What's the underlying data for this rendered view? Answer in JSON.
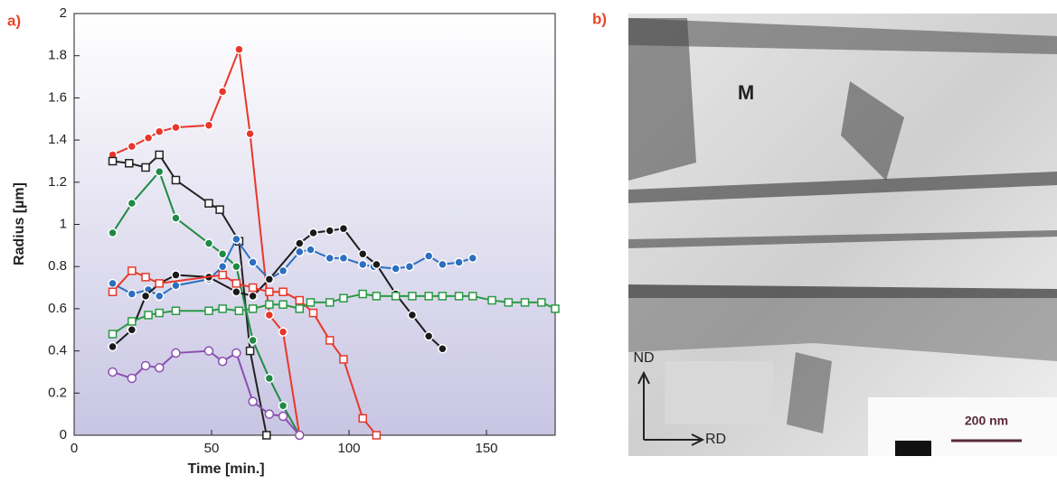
{
  "chart_data": {
    "type": "line",
    "panel_label": "a)",
    "x_label": "Time [min.]",
    "y_label": "Radius [µm]",
    "xlim": [
      0,
      175
    ],
    "ylim": [
      0,
      2
    ],
    "xticks": [
      0,
      50,
      100,
      150
    ],
    "yticks": [
      0,
      0.2,
      0.4,
      0.6,
      0.8,
      1,
      1.2,
      1.4,
      1.6,
      1.8,
      2
    ],
    "series": [
      {
        "color": "#e8372a",
        "marker": "circle",
        "filled": true,
        "x": [
          14,
          21,
          27,
          31,
          37,
          49,
          54,
          60,
          64,
          71,
          76,
          82
        ],
        "values": [
          1.33,
          1.37,
          1.41,
          1.44,
          1.46,
          1.47,
          1.63,
          1.83,
          1.43,
          0.57,
          0.49,
          0
        ]
      },
      {
        "color": "#222222",
        "marker": "square",
        "filled": false,
        "x": [
          14,
          20,
          26,
          31,
          37,
          49,
          53,
          60,
          64,
          70
        ],
        "values": [
          1.3,
          1.29,
          1.27,
          1.33,
          1.21,
          1.1,
          1.07,
          0.92,
          0.4,
          0
        ]
      },
      {
        "color": "#1f8a45",
        "marker": "circle",
        "filled": true,
        "x": [
          14,
          21,
          31,
          37,
          49,
          54,
          59,
          65,
          71,
          76,
          82
        ],
        "values": [
          0.96,
          1.1,
          1.25,
          1.03,
          0.91,
          0.86,
          0.8,
          0.45,
          0.27,
          0.14,
          0
        ]
      },
      {
        "color": "#2c6fc0",
        "marker": "circle",
        "filled": true,
        "x": [
          14,
          21,
          27,
          31,
          37,
          49,
          54,
          59,
          65,
          71,
          76,
          82,
          86,
          93,
          98,
          105,
          109,
          117,
          122,
          129,
          134,
          140,
          145
        ],
        "values": [
          0.72,
          0.67,
          0.69,
          0.66,
          0.71,
          0.74,
          0.8,
          0.93,
          0.82,
          0.74,
          0.78,
          0.87,
          0.88,
          0.84,
          0.84,
          0.81,
          0.8,
          0.79,
          0.8,
          0.85,
          0.81,
          0.82,
          0.84
        ]
      },
      {
        "color": "#1a1a1a",
        "marker": "circle",
        "filled": true,
        "x": [
          14,
          21,
          26,
          31,
          37,
          49,
          59,
          65,
          71,
          82,
          87,
          93,
          98,
          105,
          110,
          117,
          123,
          129,
          134
        ],
        "values": [
          0.42,
          0.5,
          0.66,
          0.72,
          0.76,
          0.75,
          0.68,
          0.66,
          0.74,
          0.91,
          0.96,
          0.97,
          0.98,
          0.86,
          0.81,
          0.67,
          0.57,
          0.47,
          0.41
        ]
      },
      {
        "color": "#e8372a",
        "marker": "square",
        "filled": false,
        "x": [
          14,
          21,
          26,
          31,
          54,
          59,
          65,
          71,
          76,
          82,
          87,
          93,
          98,
          105,
          110
        ],
        "values": [
          0.68,
          0.78,
          0.75,
          0.72,
          0.76,
          0.72,
          0.7,
          0.68,
          0.68,
          0.64,
          0.58,
          0.45,
          0.36,
          0.08,
          0
        ]
      },
      {
        "color": "#2a9a45",
        "marker": "square",
        "filled": false,
        "x": [
          14,
          21,
          27,
          31,
          37,
          49,
          54,
          60,
          65,
          71,
          76,
          82,
          86,
          93,
          98,
          105,
          110,
          117,
          123,
          129,
          134,
          140,
          145,
          152,
          158,
          164,
          170,
          175
        ],
        "values": [
          0.48,
          0.54,
          0.57,
          0.58,
          0.59,
          0.59,
          0.6,
          0.59,
          0.6,
          0.62,
          0.62,
          0.6,
          0.63,
          0.63,
          0.65,
          0.67,
          0.66,
          0.66,
          0.66,
          0.66,
          0.66,
          0.66,
          0.66,
          0.64,
          0.63,
          0.63,
          0.63,
          0.6
        ]
      },
      {
        "color": "#8a4fb0",
        "marker": "circle",
        "filled": false,
        "x": [
          14,
          21,
          26,
          31,
          37,
          49,
          54,
          59,
          65,
          71,
          76,
          82
        ],
        "values": [
          0.3,
          0.27,
          0.33,
          0.32,
          0.39,
          0.4,
          0.35,
          0.39,
          0.16,
          0.1,
          0.09,
          0
        ]
      }
    ]
  },
  "image": {
    "panel_label": "b)",
    "phase_label": "M",
    "axis_normal": "ND",
    "axis_rolling": "RD",
    "scale_bar": "200 nm"
  }
}
